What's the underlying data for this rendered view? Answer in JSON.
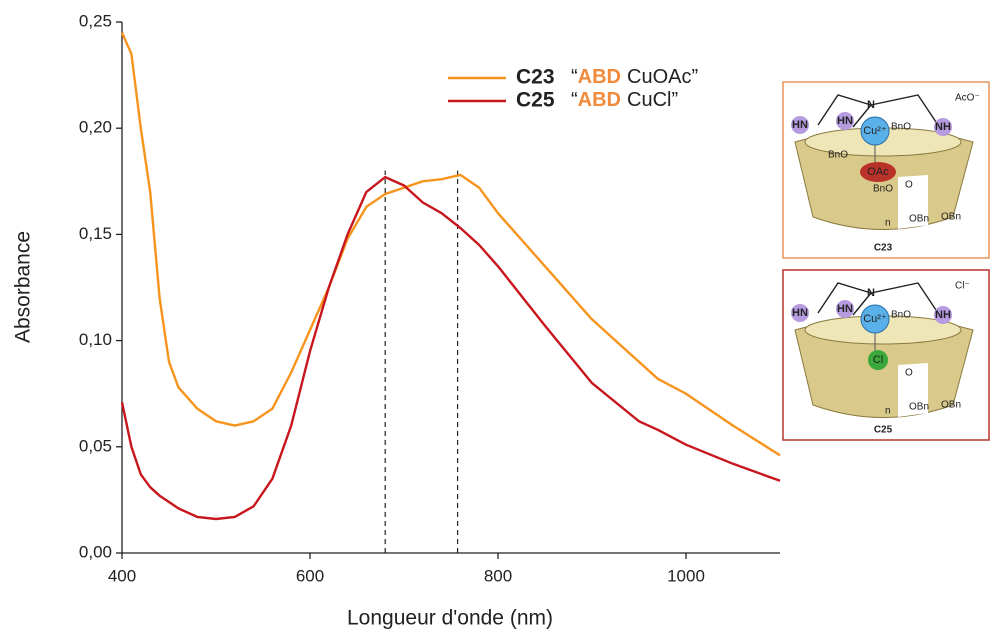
{
  "chart_data": {
    "type": "line",
    "xlabel": "Longueur d'onde (nm)",
    "ylabel": "Absorbance",
    "x": [
      400,
      410,
      420,
      430,
      440,
      450,
      460,
      480,
      500,
      520,
      540,
      560,
      580,
      600,
      620,
      640,
      660,
      680,
      700,
      720,
      740,
      760,
      780,
      800,
      850,
      900,
      950,
      970,
      1000,
      1050,
      1100
    ],
    "series": [
      {
        "name": "C23",
        "legend_text": [
          "“",
          "ABD",
          "CuOAc”"
        ],
        "color": "#f7941d",
        "values": [
          0.245,
          0.235,
          0.2,
          0.17,
          0.12,
          0.09,
          0.078,
          0.068,
          0.062,
          0.06,
          0.062,
          0.068,
          0.085,
          0.105,
          0.125,
          0.148,
          0.163,
          0.169,
          0.172,
          0.175,
          0.176,
          0.178,
          0.172,
          0.16,
          0.135,
          0.11,
          0.09,
          0.082,
          0.075,
          0.06,
          0.046
        ]
      },
      {
        "name": "C25",
        "legend_text": [
          "“",
          "ABD",
          "CuCl”"
        ],
        "color": "#c8161d",
        "values": [
          0.071,
          0.05,
          0.037,
          0.031,
          0.027,
          0.024,
          0.021,
          0.017,
          0.016,
          0.017,
          0.022,
          0.035,
          0.06,
          0.095,
          0.125,
          0.15,
          0.17,
          0.177,
          0.173,
          0.165,
          0.16,
          0.153,
          0.145,
          0.135,
          0.107,
          0.08,
          0.062,
          0.058,
          0.051,
          0.042,
          0.034
        ]
      }
    ],
    "highlight_color": "#f08a3c",
    "peak_lines": [
      680,
      757
    ],
    "xlim": [
      400,
      1100
    ],
    "xticks": [
      400,
      600,
      800,
      1000
    ],
    "ylim": [
      0,
      0.25
    ],
    "yticks": [
      {
        "value": 0,
        "label": "0,00"
      },
      {
        "value": 0.05,
        "label": "0,05"
      },
      {
        "value": 0.1,
        "label": "0,10"
      },
      {
        "value": 0.15,
        "label": "0,15"
      },
      {
        "value": 0.2,
        "label": "0,20"
      },
      {
        "value": 0.25,
        "label": "0,25"
      }
    ],
    "grid": false
  },
  "insets": [
    {
      "label": "C23",
      "anion": "AcO⁻",
      "ligand": "OAc",
      "border": "#e8955a",
      "ligand_color": "#b8322a",
      "atoms": [
        "N",
        "HN",
        "HN",
        "NH",
        "Cu²⁺"
      ],
      "sugar": [
        "BnO",
        "O",
        "OBn",
        "OBn",
        "n",
        "BnO",
        "BnO"
      ]
    },
    {
      "label": "C25",
      "anion": "Cl⁻",
      "ligand": "Cl",
      "border": "#b8322a",
      "ligand_color": "#3aa83a",
      "atoms": [
        "N",
        "HN",
        "HN",
        "NH",
        "Cu²⁺"
      ],
      "sugar": [
        "BnO",
        "O",
        "OBn",
        "OBn",
        "n"
      ]
    }
  ]
}
